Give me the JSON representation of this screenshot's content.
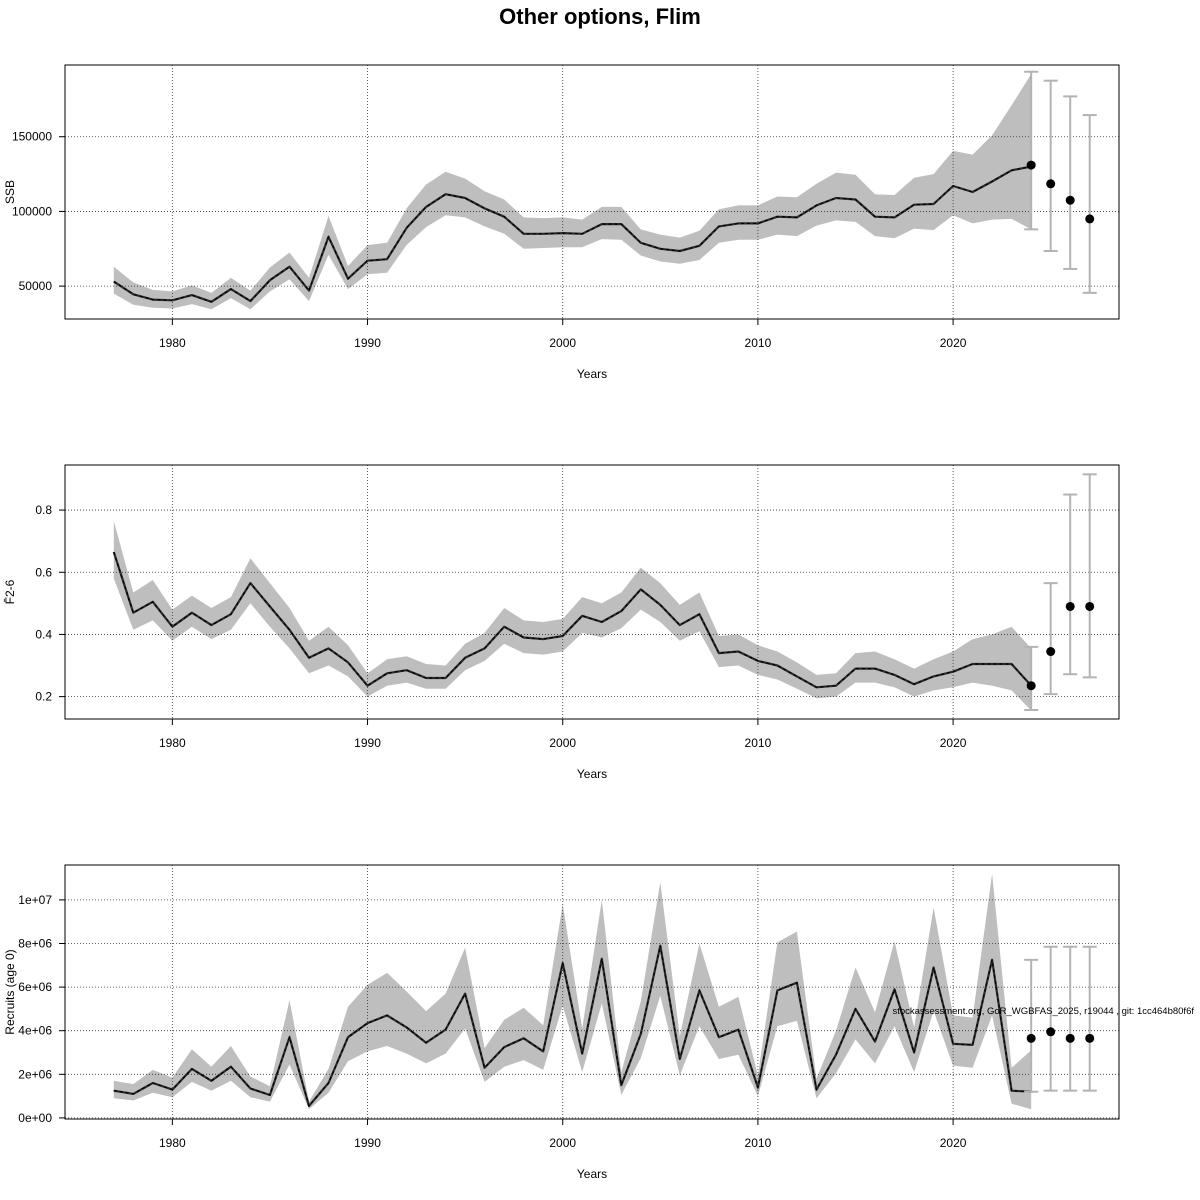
{
  "title": "Other options, Flim",
  "colors": {
    "band": "#bebebe",
    "line": "#2b2b2b",
    "errorbar": "#b3b3b3",
    "point": "#000000",
    "grid": "#333333"
  },
  "footnote": "stockassessment.org, GoR_WGBFAS_2025, r19044 , git: 1cc464b80f6f",
  "chart_data": [
    {
      "type": "area",
      "ylabel": "SSB",
      "xlabel": "Years",
      "xlim": [
        1974.5,
        2028.5
      ],
      "ylim": [
        28000,
        198000
      ],
      "xticks": [
        1980,
        1990,
        2000,
        2010,
        2020
      ],
      "yticks": [
        50000,
        100000,
        150000
      ],
      "ytick_labels": [
        "50000",
        "100000",
        "150000"
      ],
      "grid": true,
      "years": [
        1977,
        1978,
        1979,
        1980,
        1981,
        1982,
        1983,
        1984,
        1985,
        1986,
        1987,
        1988,
        1989,
        1990,
        1991,
        1992,
        1993,
        1994,
        1995,
        1996,
        1997,
        1998,
        1999,
        2000,
        2001,
        2002,
        2003,
        2004,
        2005,
        2006,
        2007,
        2008,
        2009,
        2010,
        2011,
        2012,
        2013,
        2014,
        2015,
        2016,
        2017,
        2018,
        2019,
        2020,
        2021,
        2022,
        2023,
        2024
      ],
      "estimate": [
        53000,
        44500,
        41000,
        40500,
        44000,
        39500,
        48000,
        40000,
        54000,
        63000,
        47000,
        83000,
        55000,
        67000,
        68000,
        89000,
        103000,
        111500,
        109000,
        102000,
        96500,
        85000,
        85000,
        85500,
        85000,
        91500,
        91500,
        79000,
        75000,
        73500,
        77000,
        90000,
        92000,
        92000,
        96500,
        96000,
        104000,
        109000,
        108000,
        96500,
        96000,
        104500,
        105000,
        117000,
        113000,
        120000,
        127500,
        130000
      ],
      "lower": [
        45000,
        37500,
        35500,
        35000,
        38000,
        34500,
        42000,
        34500,
        46500,
        54500,
        40000,
        71000,
        48000,
        58000,
        59000,
        77500,
        89500,
        97500,
        96000,
        90000,
        85000,
        75000,
        75500,
        76000,
        76000,
        81500,
        81000,
        70500,
        66500,
        65000,
        67500,
        79000,
        81000,
        81000,
        84500,
        83500,
        90500,
        94000,
        93000,
        83500,
        82000,
        88500,
        87500,
        97500,
        92000,
        94500,
        95000,
        88000
      ],
      "upper": [
        63000,
        52500,
        47500,
        46500,
        50500,
        45500,
        55500,
        47000,
        62500,
        72500,
        55500,
        97000,
        63500,
        77500,
        79000,
        102000,
        118000,
        126500,
        122000,
        113500,
        108000,
        96000,
        95500,
        96000,
        94500,
        103000,
        103000,
        88000,
        84500,
        82500,
        87000,
        101500,
        104000,
        104000,
        110000,
        109500,
        118500,
        126000,
        124500,
        111500,
        111000,
        122500,
        125000,
        140500,
        138000,
        151000,
        171000,
        192000
      ],
      "forecast": {
        "years": [
          2024,
          2025,
          2026,
          2027
        ],
        "median": [
          131000,
          118500,
          107500,
          95000
        ],
        "low": [
          88000,
          73500,
          61500,
          45500
        ],
        "high": [
          193500,
          187500,
          177000,
          164500
        ]
      }
    },
    {
      "type": "area",
      "ylabel": "F̄2-6",
      "xlabel": "Years",
      "xlim": [
        1974.5,
        2028.5
      ],
      "ylim": [
        0.128,
        0.945
      ],
      "xticks": [
        1980,
        1990,
        2000,
        2010,
        2020
      ],
      "yticks": [
        0.2,
        0.4,
        0.6,
        0.8
      ],
      "ytick_labels": [
        "0.2",
        "0.4",
        "0.6",
        "0.8"
      ],
      "grid": true,
      "years": [
        1977,
        1978,
        1979,
        1980,
        1981,
        1982,
        1983,
        1984,
        1985,
        1986,
        1987,
        1988,
        1989,
        1990,
        1991,
        1992,
        1993,
        1994,
        1995,
        1996,
        1997,
        1998,
        1999,
        2000,
        2001,
        2002,
        2003,
        2004,
        2005,
        2006,
        2007,
        2008,
        2009,
        2010,
        2011,
        2012,
        2013,
        2014,
        2015,
        2016,
        2017,
        2018,
        2019,
        2020,
        2021,
        2022,
        2023,
        2024
      ],
      "estimate": [
        0.665,
        0.47,
        0.505,
        0.425,
        0.47,
        0.43,
        0.465,
        0.565,
        0.49,
        0.415,
        0.325,
        0.355,
        0.31,
        0.235,
        0.275,
        0.285,
        0.26,
        0.26,
        0.325,
        0.355,
        0.425,
        0.39,
        0.385,
        0.395,
        0.46,
        0.44,
        0.475,
        0.545,
        0.495,
        0.43,
        0.465,
        0.34,
        0.345,
        0.315,
        0.3,
        0.265,
        0.23,
        0.235,
        0.29,
        0.29,
        0.27,
        0.24,
        0.265,
        0.28,
        0.305,
        0.305,
        0.305,
        0.235
      ],
      "lower": [
        0.58,
        0.415,
        0.445,
        0.38,
        0.425,
        0.385,
        0.415,
        0.5,
        0.425,
        0.355,
        0.275,
        0.3,
        0.265,
        0.2,
        0.235,
        0.245,
        0.225,
        0.225,
        0.285,
        0.315,
        0.37,
        0.34,
        0.335,
        0.345,
        0.405,
        0.39,
        0.42,
        0.48,
        0.44,
        0.38,
        0.41,
        0.295,
        0.3,
        0.27,
        0.255,
        0.225,
        0.195,
        0.2,
        0.245,
        0.245,
        0.23,
        0.2,
        0.22,
        0.23,
        0.245,
        0.235,
        0.22,
        0.155
      ],
      "upper": [
        0.765,
        0.535,
        0.575,
        0.48,
        0.525,
        0.485,
        0.52,
        0.645,
        0.565,
        0.485,
        0.38,
        0.425,
        0.365,
        0.275,
        0.32,
        0.33,
        0.305,
        0.3,
        0.37,
        0.405,
        0.485,
        0.445,
        0.44,
        0.45,
        0.52,
        0.5,
        0.535,
        0.615,
        0.565,
        0.495,
        0.535,
        0.395,
        0.4,
        0.365,
        0.345,
        0.31,
        0.27,
        0.275,
        0.34,
        0.345,
        0.32,
        0.29,
        0.32,
        0.345,
        0.385,
        0.4,
        0.425,
        0.355
      ],
      "forecast": {
        "years": [
          2024,
          2025,
          2026,
          2027
        ],
        "median": [
          0.235,
          0.345,
          0.49,
          0.49
        ],
        "low": [
          0.157,
          0.208,
          0.272,
          0.262
        ],
        "high": [
          0.36,
          0.565,
          0.85,
          0.915
        ]
      }
    },
    {
      "type": "area",
      "ylabel": "Recruits (age 0)",
      "xlabel": "Years",
      "xlim": [
        1974.5,
        2028.5
      ],
      "ylim": [
        -50000,
        11600000
      ],
      "xticks": [
        1980,
        1990,
        2000,
        2010,
        2020
      ],
      "yticks": [
        0,
        2000000,
        4000000,
        6000000,
        8000000,
        10000000
      ],
      "ytick_labels": [
        "0e+00",
        "2e+06",
        "4e+06",
        "6e+06",
        "8e+06",
        "1e+07"
      ],
      "grid": true,
      "years": [
        1977,
        1978,
        1979,
        1980,
        1981,
        1982,
        1983,
        1984,
        1985,
        1986,
        1987,
        1988,
        1989,
        1990,
        1991,
        1992,
        1993,
        1994,
        1995,
        1996,
        1997,
        1998,
        1999,
        2000,
        2001,
        2002,
        2003,
        2004,
        2005,
        2006,
        2007,
        2008,
        2009,
        2010,
        2011,
        2012,
        2013,
        2014,
        2015,
        2016,
        2017,
        2018,
        2019,
        2020,
        2021,
        2022,
        2023,
        2024
      ],
      "estimate": [
        1250000,
        1100000,
        1600000,
        1300000,
        2250000,
        1700000,
        2350000,
        1350000,
        1050000,
        3700000,
        550000,
        1600000,
        3700000,
        4350000,
        4700000,
        4150000,
        3450000,
        4050000,
        5700000,
        2300000,
        3250000,
        3650000,
        3050000,
        7100000,
        2950000,
        7300000,
        1500000,
        3850000,
        7900000,
        2700000,
        5850000,
        3700000,
        4050000,
        1400000,
        5850000,
        6200000,
        1300000,
        2900000,
        5000000,
        3500000,
        5900000,
        3000000,
        6900000,
        3400000,
        3350000,
        7250000,
        1250000,
        1200000
      ],
      "lower": [
        900000,
        800000,
        1150000,
        950000,
        1650000,
        1250000,
        1700000,
        950000,
        750000,
        2450000,
        400000,
        1150000,
        2600000,
        3050000,
        3300000,
        2950000,
        2500000,
        2950000,
        4100000,
        1650000,
        2350000,
        2650000,
        2200000,
        5150000,
        2100000,
        5250000,
        1050000,
        2750000,
        5600000,
        1950000,
        4200000,
        2700000,
        2900000,
        1000000,
        4200000,
        4450000,
        900000,
        2050000,
        3600000,
        2500000,
        4200000,
        2100000,
        4900000,
        2400000,
        2300000,
        4700000,
        650000,
        400000
      ],
      "upper": [
        1700000,
        1550000,
        2200000,
        1850000,
        3150000,
        2350000,
        3300000,
        1900000,
        1450000,
        5400000,
        750000,
        2250000,
        5100000,
        6100000,
        6650000,
        5800000,
        4900000,
        5700000,
        7800000,
        3200000,
        4500000,
        5050000,
        4250000,
        9800000,
        4100000,
        10000000,
        2100000,
        5350000,
        10800000,
        3750000,
        8000000,
        5100000,
        5550000,
        1950000,
        8050000,
        8550000,
        1800000,
        4000000,
        6900000,
        4850000,
        8100000,
        4150000,
        9650000,
        4700000,
        4600000,
        11200000,
        2300000,
        3100000
      ],
      "forecast": {
        "years": [
          2024,
          2025,
          2026,
          2027
        ],
        "median": [
          3650000,
          3950000,
          3650000,
          3650000
        ],
        "low": [
          1200000,
          1250000,
          1250000,
          1250000
        ],
        "high": [
          7250000,
          7850000,
          7850000,
          7850000
        ]
      }
    }
  ]
}
